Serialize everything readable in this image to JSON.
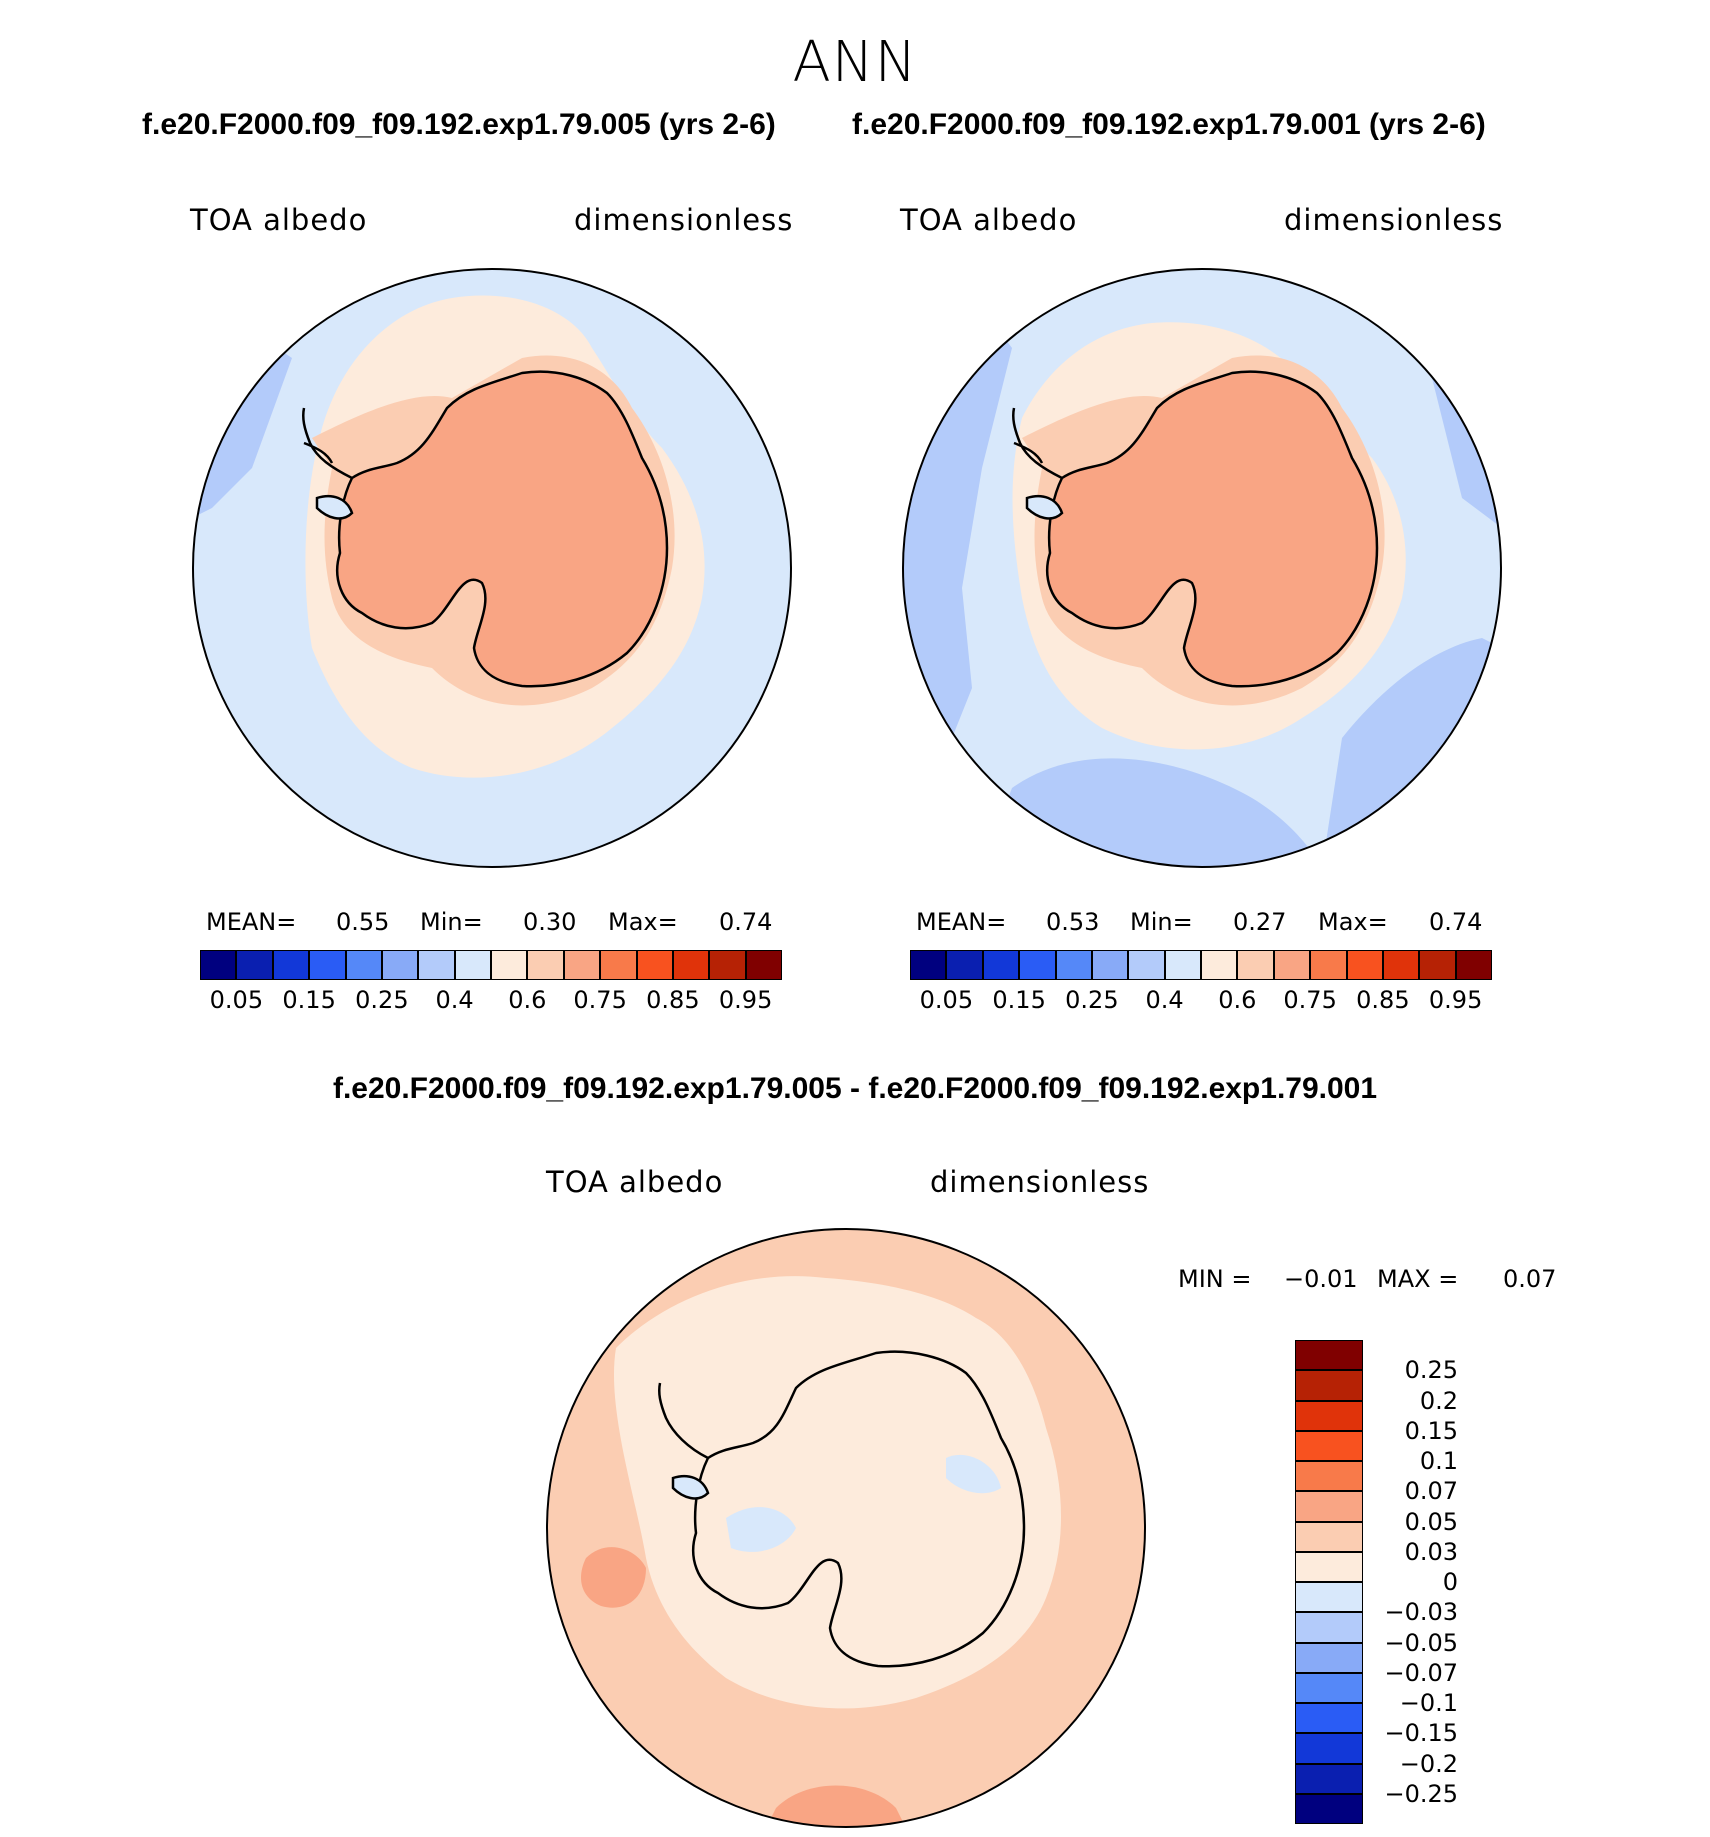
{
  "figure": {
    "title": "ANN",
    "case1_title": "f.e20.F2000.f09_f09.192.exp1.79.005 (yrs 2-6)",
    "case2_title": "f.e20.F2000.f09_f09.192.exp1.79.001 (yrs 2-6)",
    "diff_title": "f.e20.F2000.f09_f09.192.exp1.79.005 - f.e20.F2000.f09_f09.192.exp1.79.001"
  },
  "panels": [
    {
      "variable": "TOA albedo",
      "units": "dimensionless",
      "mean_label": "MEAN=",
      "mean": "0.55",
      "min_label": "Min=",
      "min": "0.30",
      "max_label": "Max=",
      "max": "0.74"
    },
    {
      "variable": "TOA albedo",
      "units": "dimensionless",
      "mean_label": "MEAN=",
      "mean": "0.53",
      "min_label": "Min=",
      "min": "0.27",
      "max_label": "Max=",
      "max": "0.74"
    },
    {
      "variable": "TOA albedo",
      "units": "dimensionless",
      "min_label": "MIN =",
      "min": "−0.01",
      "max_label": "MAX =",
      "max": "0.07"
    }
  ],
  "colorbar_abs": {
    "ticks": [
      "0.05",
      "0.15",
      "0.25",
      "0.4",
      "0.6",
      "0.75",
      "0.85",
      "0.95"
    ],
    "colors": [
      "#00007f",
      "#0a1fb0",
      "#1238d8",
      "#2a5cf5",
      "#5588f8",
      "#88aaf7",
      "#b3cbfa",
      "#d8e8fb",
      "#fdebdc",
      "#fbcdb2",
      "#f9a584",
      "#f87a4a",
      "#f8521f",
      "#e0330a",
      "#b62205",
      "#800000"
    ]
  },
  "colorbar_diff": {
    "ticks": [
      "0.25",
      "0.2",
      "0.15",
      "0.1",
      "0.07",
      "0.05",
      "0.03",
      "0",
      "−0.03",
      "−0.05",
      "−0.07",
      "−0.1",
      "−0.15",
      "−0.2",
      "−0.25"
    ],
    "colors": [
      "#800000",
      "#b62205",
      "#e0330a",
      "#f8521f",
      "#f87a4a",
      "#f9a584",
      "#fbcdb2",
      "#fdebdc",
      "#d8e8fb",
      "#b3cbfa",
      "#88aaf7",
      "#5588f8",
      "#2a5cf5",
      "#1238d8",
      "#0a1fb0",
      "#00007f"
    ]
  },
  "map_colors": {
    "ocean_light": "#d8e8fb",
    "ocean_mid": "#b3cbfa",
    "sea_ice": "#fdebdc",
    "coast_band": "#fbcdb2",
    "continent": "#f9a584"
  }
}
